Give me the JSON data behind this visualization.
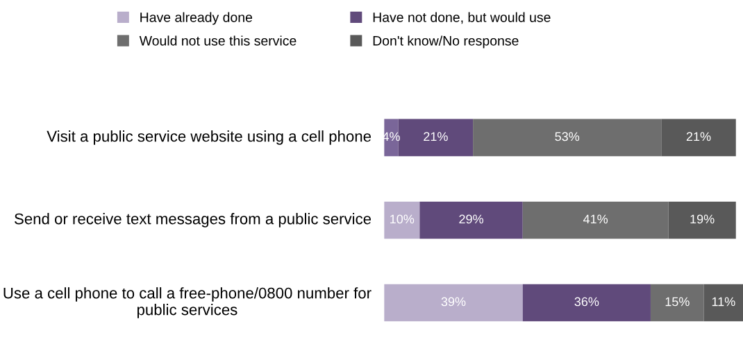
{
  "chart_data": {
    "type": "bar",
    "orientation": "horizontal",
    "stacked": true,
    "data_labels": true,
    "legend": "top",
    "categories": [
      "Visit a public service website using a cell phone",
      "Send or receive text messages from a public service",
      "Use a cell phone to call a free-phone/0800 number for public services"
    ],
    "series": [
      {
        "name": "Have already done",
        "color": "#b9aecb",
        "colors": [
          "#7a6699",
          "#b9aecb",
          "#b9aecb"
        ],
        "values": [
          4,
          10,
          39
        ],
        "value_labels": [
          "4%",
          "10%",
          "39%"
        ]
      },
      {
        "name": "Have not done, but would use",
        "color": "#604a7b",
        "values": [
          21,
          29,
          36
        ],
        "value_labels": [
          "21%",
          "29%",
          "36%"
        ]
      },
      {
        "name": "Would not use this service",
        "color": "#6e6e6e",
        "values": [
          53,
          41,
          15
        ],
        "value_labels": [
          "53%",
          "41%",
          "15%"
        ]
      },
      {
        "name": "Don't know/No response",
        "color": "#595959",
        "values": [
          21,
          19,
          11
        ],
        "value_labels": [
          "21%",
          "19%",
          "11%"
        ]
      }
    ]
  }
}
